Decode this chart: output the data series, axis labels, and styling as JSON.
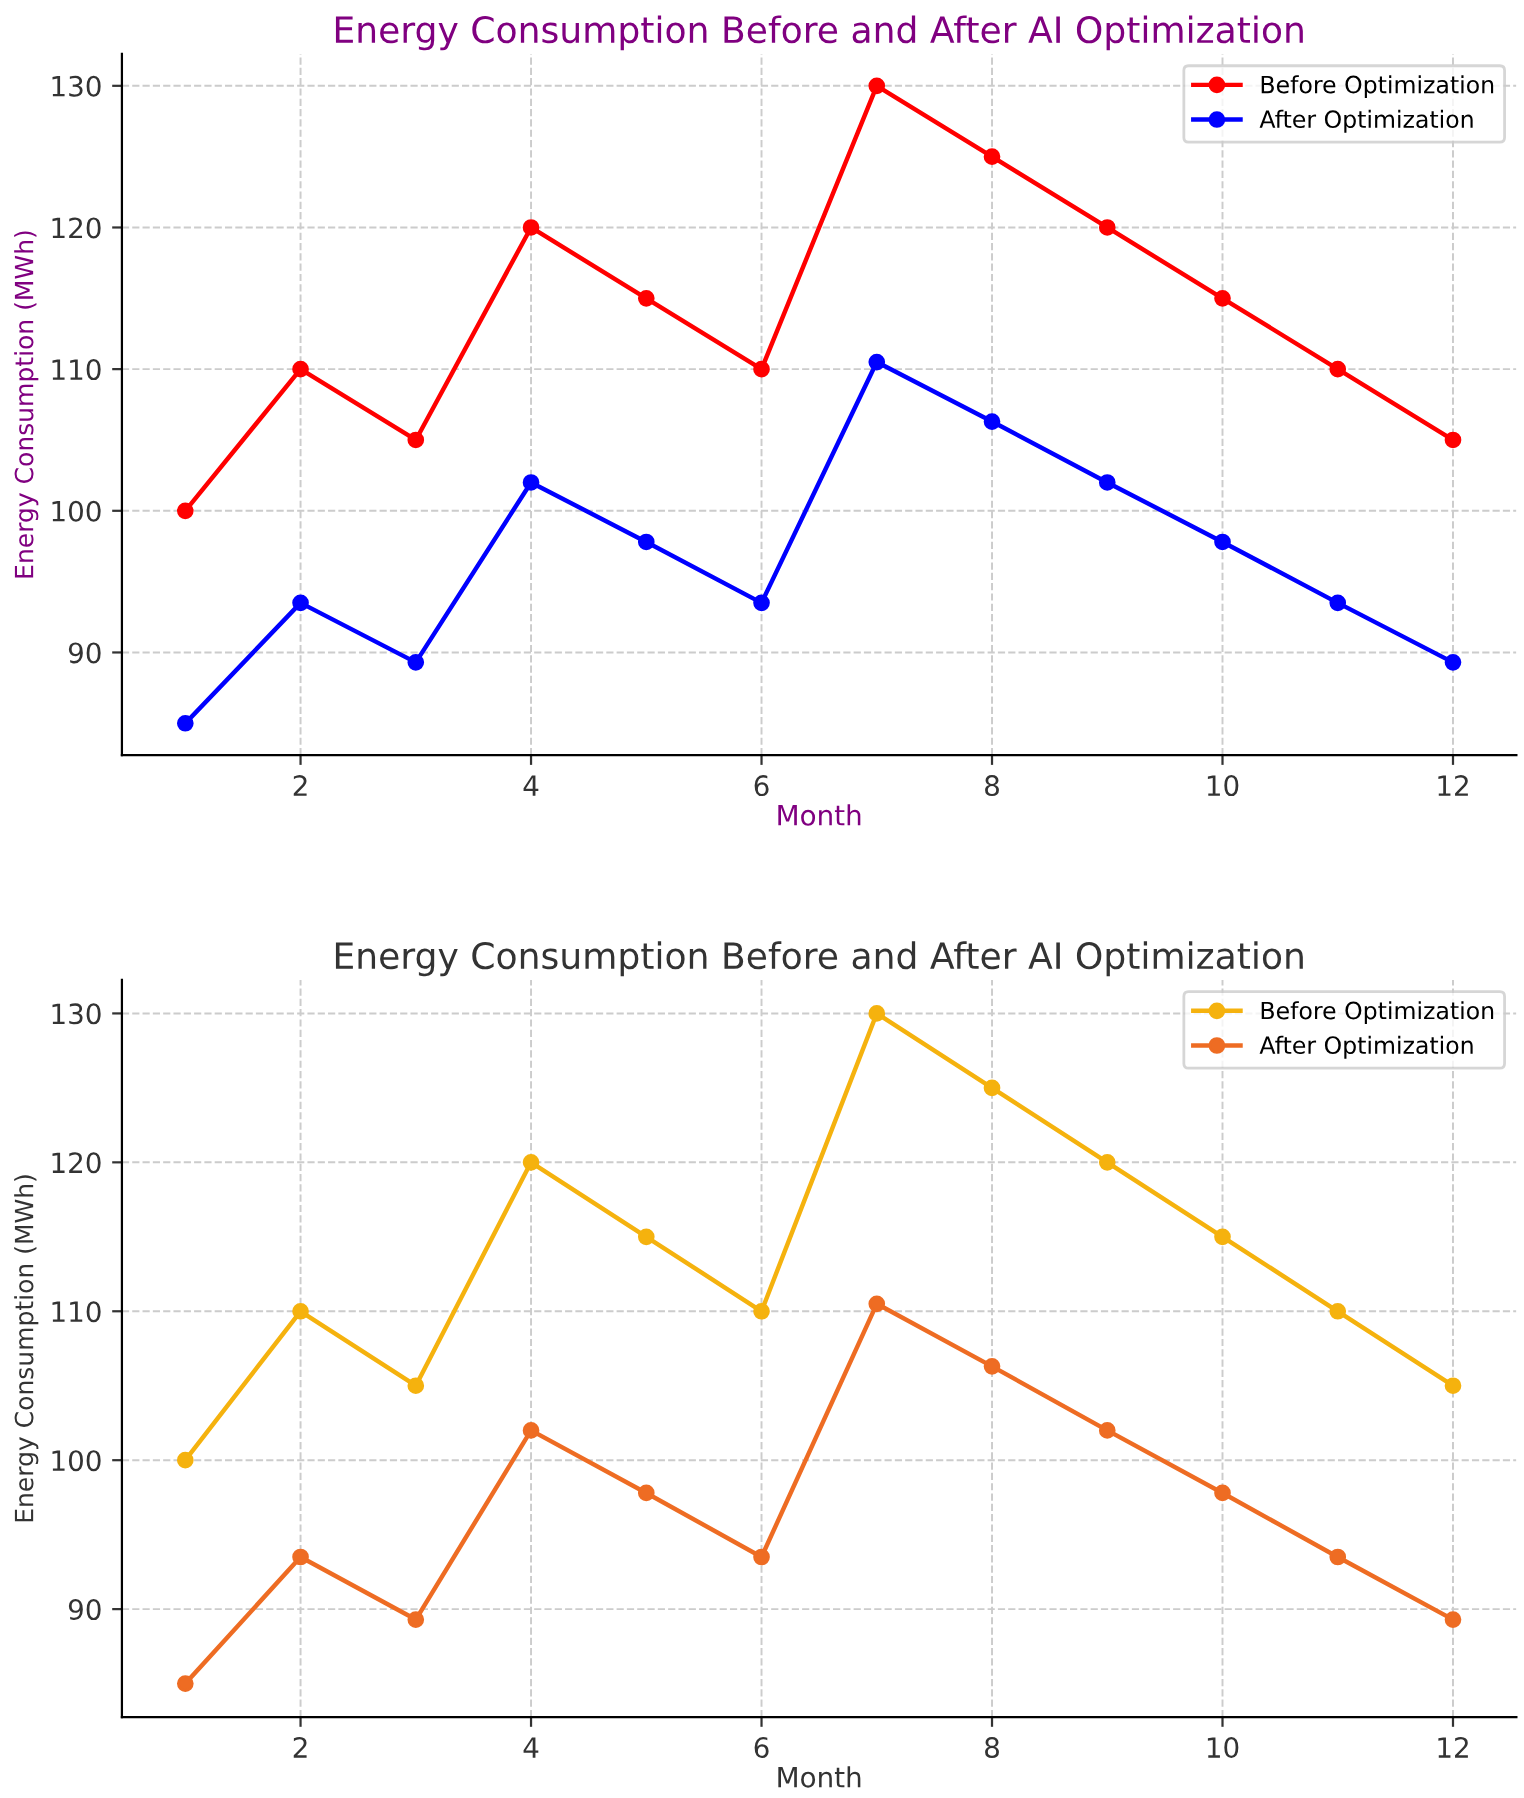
{
  "chart_data": [
    {
      "type": "line",
      "title": "Energy Consumption Before and After AI Optimization",
      "xlabel": "Month",
      "ylabel": "Energy Consumption (MWh)",
      "x": [
        1,
        2,
        3,
        4,
        5,
        6,
        7,
        8,
        9,
        10,
        11,
        12
      ],
      "series": [
        {
          "name": "Before Optimization",
          "color": "#ff0000",
          "values": [
            100,
            110,
            105,
            120,
            115,
            110,
            130,
            125,
            120,
            115,
            110,
            105
          ]
        },
        {
          "name": "After Optimization",
          "color": "#0000ff",
          "values": [
            85,
            93.5,
            89.3,
            102,
            97.8,
            93.5,
            110.5,
            106.3,
            102,
            97.8,
            93.5,
            89.3
          ]
        }
      ],
      "xlim": [
        0.45,
        12.55
      ],
      "xticks": [
        2,
        4,
        6,
        8,
        10,
        12
      ],
      "ylim": [
        82.75,
        132.25
      ],
      "yticks": [
        90,
        100,
        110,
        120,
        130
      ],
      "grid": true,
      "legend": "top right",
      "marker": "circle",
      "line_style": "solid"
    },
    {
      "type": "line",
      "title": "Energy Consumption Before and After AI Optimization",
      "xlabel": "Month",
      "ylabel": "Energy Consumption (MWh)",
      "x": [
        1,
        2,
        3,
        4,
        5,
        6,
        7,
        8,
        9,
        10,
        11,
        12
      ],
      "series": [
        {
          "name": "Before Optimization",
          "color": "#f5b20e",
          "values": [
            100,
            110,
            105,
            120,
            115,
            110,
            130,
            125,
            120,
            115,
            110,
            105
          ]
        },
        {
          "name": "After Optimization",
          "color": "#ee6c23",
          "values": [
            85,
            93.5,
            89.3,
            102,
            97.8,
            93.5,
            110.5,
            106.3,
            102,
            97.8,
            93.5,
            89.3
          ]
        }
      ],
      "xlim": [
        0.45,
        12.55
      ],
      "xticks": [
        2,
        4,
        6,
        8,
        10,
        12
      ],
      "ylim": [
        82.75,
        132.25
      ],
      "yticks": [
        90,
        100,
        110,
        120,
        130
      ],
      "grid": true,
      "legend": "top right",
      "marker": "circle",
      "line_style": "solid"
    }
  ]
}
